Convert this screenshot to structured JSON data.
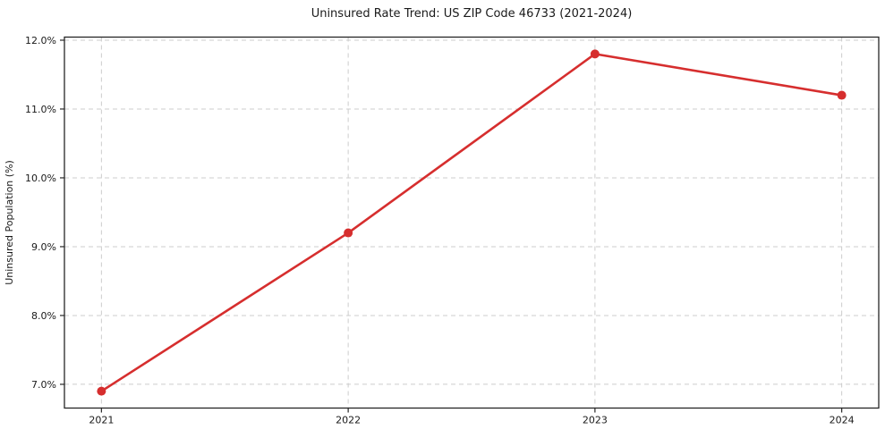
{
  "chart_data": {
    "type": "line",
    "title": "Uninsured Rate Trend: US ZIP Code 46733 (2021-2024)",
    "xlabel": "",
    "ylabel": "Uninsured Population (%)",
    "x": [
      2021,
      2022,
      2023,
      2024
    ],
    "x_tick_labels": [
      "2021",
      "2022",
      "2023",
      "2024"
    ],
    "series": [
      {
        "name": "Uninsured rate (%)",
        "values": [
          6.9,
          9.2,
          11.8,
          11.2
        ]
      }
    ],
    "y_ticks": [
      7.0,
      8.0,
      9.0,
      10.0,
      11.0,
      12.0
    ],
    "y_tick_labels": [
      "7.0%",
      "8.0%",
      "9.0%",
      "10.0%",
      "11.0%",
      "12.0%"
    ],
    "xlim": [
      2020.85,
      2024.15
    ],
    "ylim": [
      6.655,
      12.045
    ],
    "grid": true,
    "grid_style": "dashed",
    "legend": "none",
    "marker": "circle",
    "colors": {
      "line": "#d62e2e",
      "grid": "#cccccc",
      "axis": "#262626",
      "text": "#1a1a1a",
      "background": "#ffffff"
    }
  }
}
